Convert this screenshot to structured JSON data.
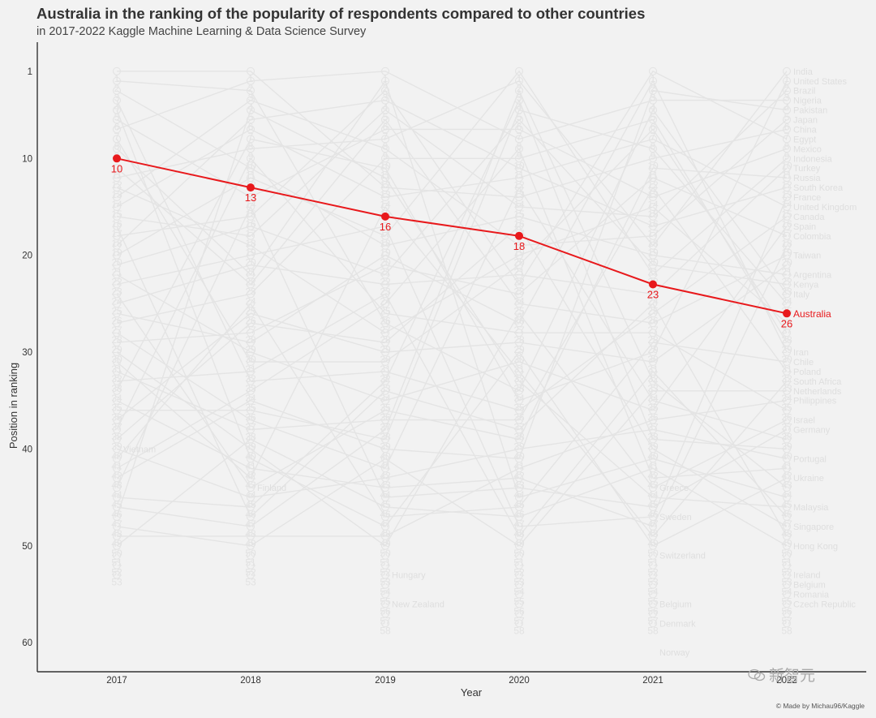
{
  "title": "Australia in the ranking of the popularity of respondents compared to other countries",
  "subtitle": "in 2017-2022 Kaggle Machine Learning & Data Science Survey",
  "credit": "© Made by Michau96/Kaggle",
  "watermark": "新智元",
  "colors": {
    "background": "#f2f2f2",
    "highlight": "#e8191c",
    "context": "#e4e4e4",
    "axis": "#333333"
  },
  "chart_data": {
    "type": "line",
    "chart_subtype": "bump chart (rank over time)",
    "xlabel": "Year",
    "ylabel": "Position in ranking",
    "x": [
      2017,
      2018,
      2019,
      2020,
      2021,
      2022
    ],
    "x_tick_labels": [
      "2017",
      "2018",
      "2019",
      "2020",
      "2021",
      "2022"
    ],
    "y_reversed": true,
    "y_range": [
      63,
      -2
    ],
    "y_ticks": [
      1,
      10,
      20,
      30,
      40,
      50,
      60
    ],
    "grid": false,
    "highlight_series": {
      "name": "Australia",
      "values": [
        10,
        13,
        16,
        18,
        23,
        26
      ]
    },
    "context_ranks_per_year": 50,
    "context_labels_2017": [
      {
        "rank": 40,
        "name": "Vietnam"
      }
    ],
    "context_labels_2018": [
      {
        "rank": 44,
        "name": "Finland"
      }
    ],
    "context_labels_2019": [
      {
        "rank": 53,
        "name": "Hungary"
      },
      {
        "rank": 56,
        "name": "New Zealand"
      }
    ],
    "context_labels_2021": [
      {
        "rank": 44,
        "name": "Greece"
      },
      {
        "rank": 47,
        "name": "Sweden"
      },
      {
        "rank": 51,
        "name": "Switzerland"
      },
      {
        "rank": 56,
        "name": "Belgium"
      },
      {
        "rank": 58,
        "name": "Denmark"
      },
      {
        "rank": 61,
        "name": "Norway"
      }
    ],
    "context_labels_2022": [
      {
        "rank": 1,
        "name": "India"
      },
      {
        "rank": 2,
        "name": "United States"
      },
      {
        "rank": 3,
        "name": "Brazil"
      },
      {
        "rank": 4,
        "name": "Nigeria"
      },
      {
        "rank": 5,
        "name": "Pakistan"
      },
      {
        "rank": 6,
        "name": "Japan"
      },
      {
        "rank": 7,
        "name": "China"
      },
      {
        "rank": 8,
        "name": "Egypt"
      },
      {
        "rank": 9,
        "name": "Mexico"
      },
      {
        "rank": 10,
        "name": "Indonesia"
      },
      {
        "rank": 11,
        "name": "Turkey"
      },
      {
        "rank": 12,
        "name": "Russia"
      },
      {
        "rank": 13,
        "name": "South Korea"
      },
      {
        "rank": 14,
        "name": "France"
      },
      {
        "rank": 15,
        "name": "United Kingdom"
      },
      {
        "rank": 16,
        "name": "Canada"
      },
      {
        "rank": 17,
        "name": "Spain"
      },
      {
        "rank": 18,
        "name": "Colombia"
      },
      {
        "rank": 20,
        "name": "Taiwan"
      },
      {
        "rank": 22,
        "name": "Argentina"
      },
      {
        "rank": 23,
        "name": "Kenya"
      },
      {
        "rank": 24,
        "name": "Italy"
      },
      {
        "rank": 26,
        "name": "Australia"
      },
      {
        "rank": 30,
        "name": "Iran"
      },
      {
        "rank": 31,
        "name": "Chile"
      },
      {
        "rank": 32,
        "name": "Poland"
      },
      {
        "rank": 33,
        "name": "South Africa"
      },
      {
        "rank": 34,
        "name": "Netherlands"
      },
      {
        "rank": 35,
        "name": "Philippines"
      },
      {
        "rank": 37,
        "name": "Israel"
      },
      {
        "rank": 38,
        "name": "Germany"
      },
      {
        "rank": 41,
        "name": "Portugal"
      },
      {
        "rank": 43,
        "name": "Ukraine"
      },
      {
        "rank": 46,
        "name": "Malaysia"
      },
      {
        "rank": 48,
        "name": "Singapore"
      },
      {
        "rank": 50,
        "name": "Hong Kong"
      },
      {
        "rank": 53,
        "name": "Ireland"
      },
      {
        "rank": 54,
        "name": "Belgium"
      },
      {
        "rank": 55,
        "name": "Romania"
      },
      {
        "rank": 56,
        "name": "Czech Republic"
      }
    ]
  }
}
